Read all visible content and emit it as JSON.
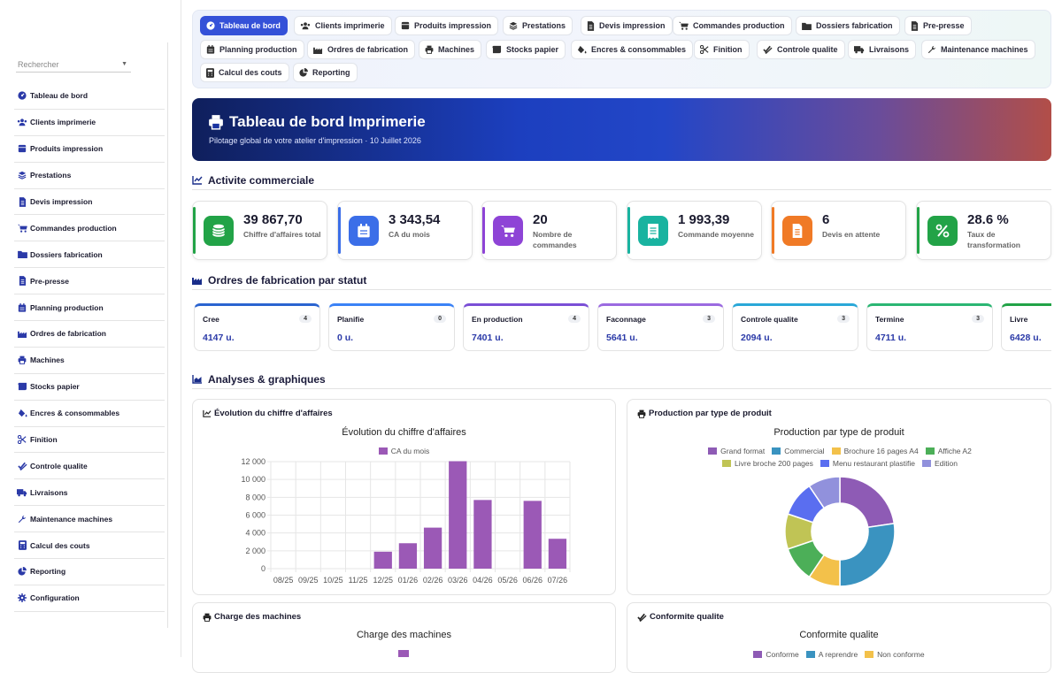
{
  "search": {
    "placeholder": "Rechercher"
  },
  "sidebar": {
    "items": [
      {
        "label": "Tableau de bord",
        "icon": "gauge-icon"
      },
      {
        "label": "Clients imprimerie",
        "icon": "users-icon"
      },
      {
        "label": "Produits impression",
        "icon": "box-icon"
      },
      {
        "label": "Prestations",
        "icon": "layers-icon"
      },
      {
        "label": "Devis impression",
        "icon": "file-icon"
      },
      {
        "label": "Commandes production",
        "icon": "cart-icon"
      },
      {
        "label": "Dossiers fabrication",
        "icon": "folder-icon"
      },
      {
        "label": "Pre-presse",
        "icon": "file-icon"
      },
      {
        "label": "Planning production",
        "icon": "calendar-icon"
      },
      {
        "label": "Ordres de fabrication",
        "icon": "industry-icon"
      },
      {
        "label": "Machines",
        "icon": "printer-icon"
      },
      {
        "label": "Stocks papier",
        "icon": "scroll-icon"
      },
      {
        "label": "Encres & consommables",
        "icon": "fill-drip-icon"
      },
      {
        "label": "Finition",
        "icon": "scissors-icon"
      },
      {
        "label": "Controle qualite",
        "icon": "check-double-icon"
      },
      {
        "label": "Livraisons",
        "icon": "truck-icon"
      },
      {
        "label": "Maintenance machines",
        "icon": "wrench-icon"
      },
      {
        "label": "Calcul des couts",
        "icon": "calculator-icon"
      },
      {
        "label": "Reporting",
        "icon": "pie-icon"
      },
      {
        "label": "Configuration",
        "icon": "gear-icon"
      }
    ]
  },
  "tabs": [
    {
      "label": "Tableau de bord",
      "icon": "gauge-icon",
      "active": true
    },
    {
      "label": "Clients imprimerie",
      "icon": "users-icon"
    },
    {
      "label": "Produits impression",
      "icon": "box-icon"
    },
    {
      "label": "Prestations",
      "icon": "layers-icon"
    },
    {
      "label": "Devis impression",
      "icon": "file-icon"
    },
    {
      "label": "Commandes production",
      "icon": "cart-icon"
    },
    {
      "label": "Dossiers fabrication",
      "icon": "folder-icon"
    },
    {
      "label": "Pre-presse",
      "icon": "file-icon"
    },
    {
      "label": "Planning production",
      "icon": "calendar-icon"
    },
    {
      "label": "Ordres de fabrication",
      "icon": "industry-icon"
    },
    {
      "label": "Machines",
      "icon": "printer-icon"
    },
    {
      "label": "Stocks papier",
      "icon": "scroll-icon"
    },
    {
      "label": "Encres & consommables",
      "icon": "fill-drip-icon"
    },
    {
      "label": "Finition",
      "icon": "scissors-icon"
    },
    {
      "label": "Controle qualite",
      "icon": "check-double-icon"
    },
    {
      "label": "Livraisons",
      "icon": "truck-icon"
    },
    {
      "label": "Maintenance machines",
      "icon": "wrench-icon"
    },
    {
      "label": "Calcul des couts",
      "icon": "calculator-icon"
    },
    {
      "label": "Reporting",
      "icon": "pie-icon"
    }
  ],
  "hero": {
    "title": "Tableau de bord Imprimerie",
    "subtitle": "Pilotage global de votre atelier d'impression · 10 Juillet 2026"
  },
  "sections": {
    "commercial": "Activite commerciale",
    "statuts": "Ordres de fabrication par statut",
    "analyses": "Analyses & graphiques"
  },
  "kpis": [
    {
      "value": "39 867,70",
      "label": "Chiffre d'affaires total",
      "color": "#22a347",
      "icon": "coins-icon"
    },
    {
      "value": "3 343,54",
      "label": "CA du mois",
      "color": "#3b6ee8",
      "icon": "calendar-icon"
    },
    {
      "value": "20",
      "label": "Nombre de commandes",
      "color": "#8e44d6",
      "icon": "cart-icon"
    },
    {
      "value": "1 993,39",
      "label": "Commande moyenne",
      "color": "#19b3a0",
      "icon": "receipt-icon"
    },
    {
      "value": "6",
      "label": "Devis en attente",
      "color": "#f07a26",
      "icon": "file-icon"
    },
    {
      "value": "28.6 %",
      "label": "Taux de transformation",
      "color": "#22a347",
      "icon": "percent-icon"
    }
  ],
  "statuts": [
    {
      "name": "Cree",
      "count": "4",
      "qty": "4147 u.",
      "color": "#2a64d0"
    },
    {
      "name": "Planifie",
      "count": "0",
      "qty": "0 u.",
      "color": "#3b82f6"
    },
    {
      "name": "En production",
      "count": "4",
      "qty": "7401 u.",
      "color": "#7b4fd6"
    },
    {
      "name": "Faconnage",
      "count": "3",
      "qty": "5641 u.",
      "color": "#9b6ae0"
    },
    {
      "name": "Controle qualite",
      "count": "3",
      "qty": "2094 u.",
      "color": "#2aa8d8"
    },
    {
      "name": "Termine",
      "count": "3",
      "qty": "4711 u.",
      "color": "#2bb673"
    },
    {
      "name": "Livre",
      "count": "",
      "qty": "6428 u.",
      "color": "#22a347"
    }
  ],
  "cards": {
    "ca": {
      "header": "Évolution du chiffre d'affaires"
    },
    "prod": {
      "header": "Production par type de produit"
    },
    "charge": {
      "header": "Charge des machines",
      "title": "Charge des machines"
    },
    "qual": {
      "header": "Conformite qualite",
      "title": "Conformite qualite",
      "legend": [
        {
          "name": "Conforme",
          "color": "#8e5bb5"
        },
        {
          "name": "A reprendre",
          "color": "#3a93c0"
        },
        {
          "name": "Non conforme",
          "color": "#f3c14a"
        }
      ]
    }
  },
  "chart_data": [
    {
      "type": "bar",
      "title": "Évolution du chiffre d'affaires",
      "legend": "CA du mois",
      "color": "#9b59b6",
      "categories": [
        "08/25",
        "09/25",
        "10/25",
        "11/25",
        "12/25",
        "01/26",
        "02/26",
        "03/26",
        "04/26",
        "05/26",
        "06/26",
        "07/26"
      ],
      "values": [
        0,
        0,
        0,
        0,
        1900,
        2850,
        4600,
        12050,
        7700,
        0,
        7600,
        3350
      ],
      "ylim": [
        0,
        12000
      ],
      "yticks": [
        "0",
        "2 000",
        "4 000",
        "6 000",
        "8 000",
        "10 000",
        "12 000"
      ],
      "grid": true
    },
    {
      "type": "pie",
      "title": "Production par type de produit",
      "labels": [
        "Grand format",
        "Commercial",
        "Brochure 16 pages A4",
        "Affiche A2",
        "Livre broche 200 pages",
        "Menu restaurant plastifie",
        "Edition"
      ],
      "values": [
        24,
        29,
        10,
        11,
        11,
        11,
        10
      ],
      "colors": [
        "#8e5bb5",
        "#3a93c0",
        "#f3c14a",
        "#4caf58",
        "#c0c455",
        "#5a6ef0",
        "#9191dc"
      ]
    }
  ]
}
